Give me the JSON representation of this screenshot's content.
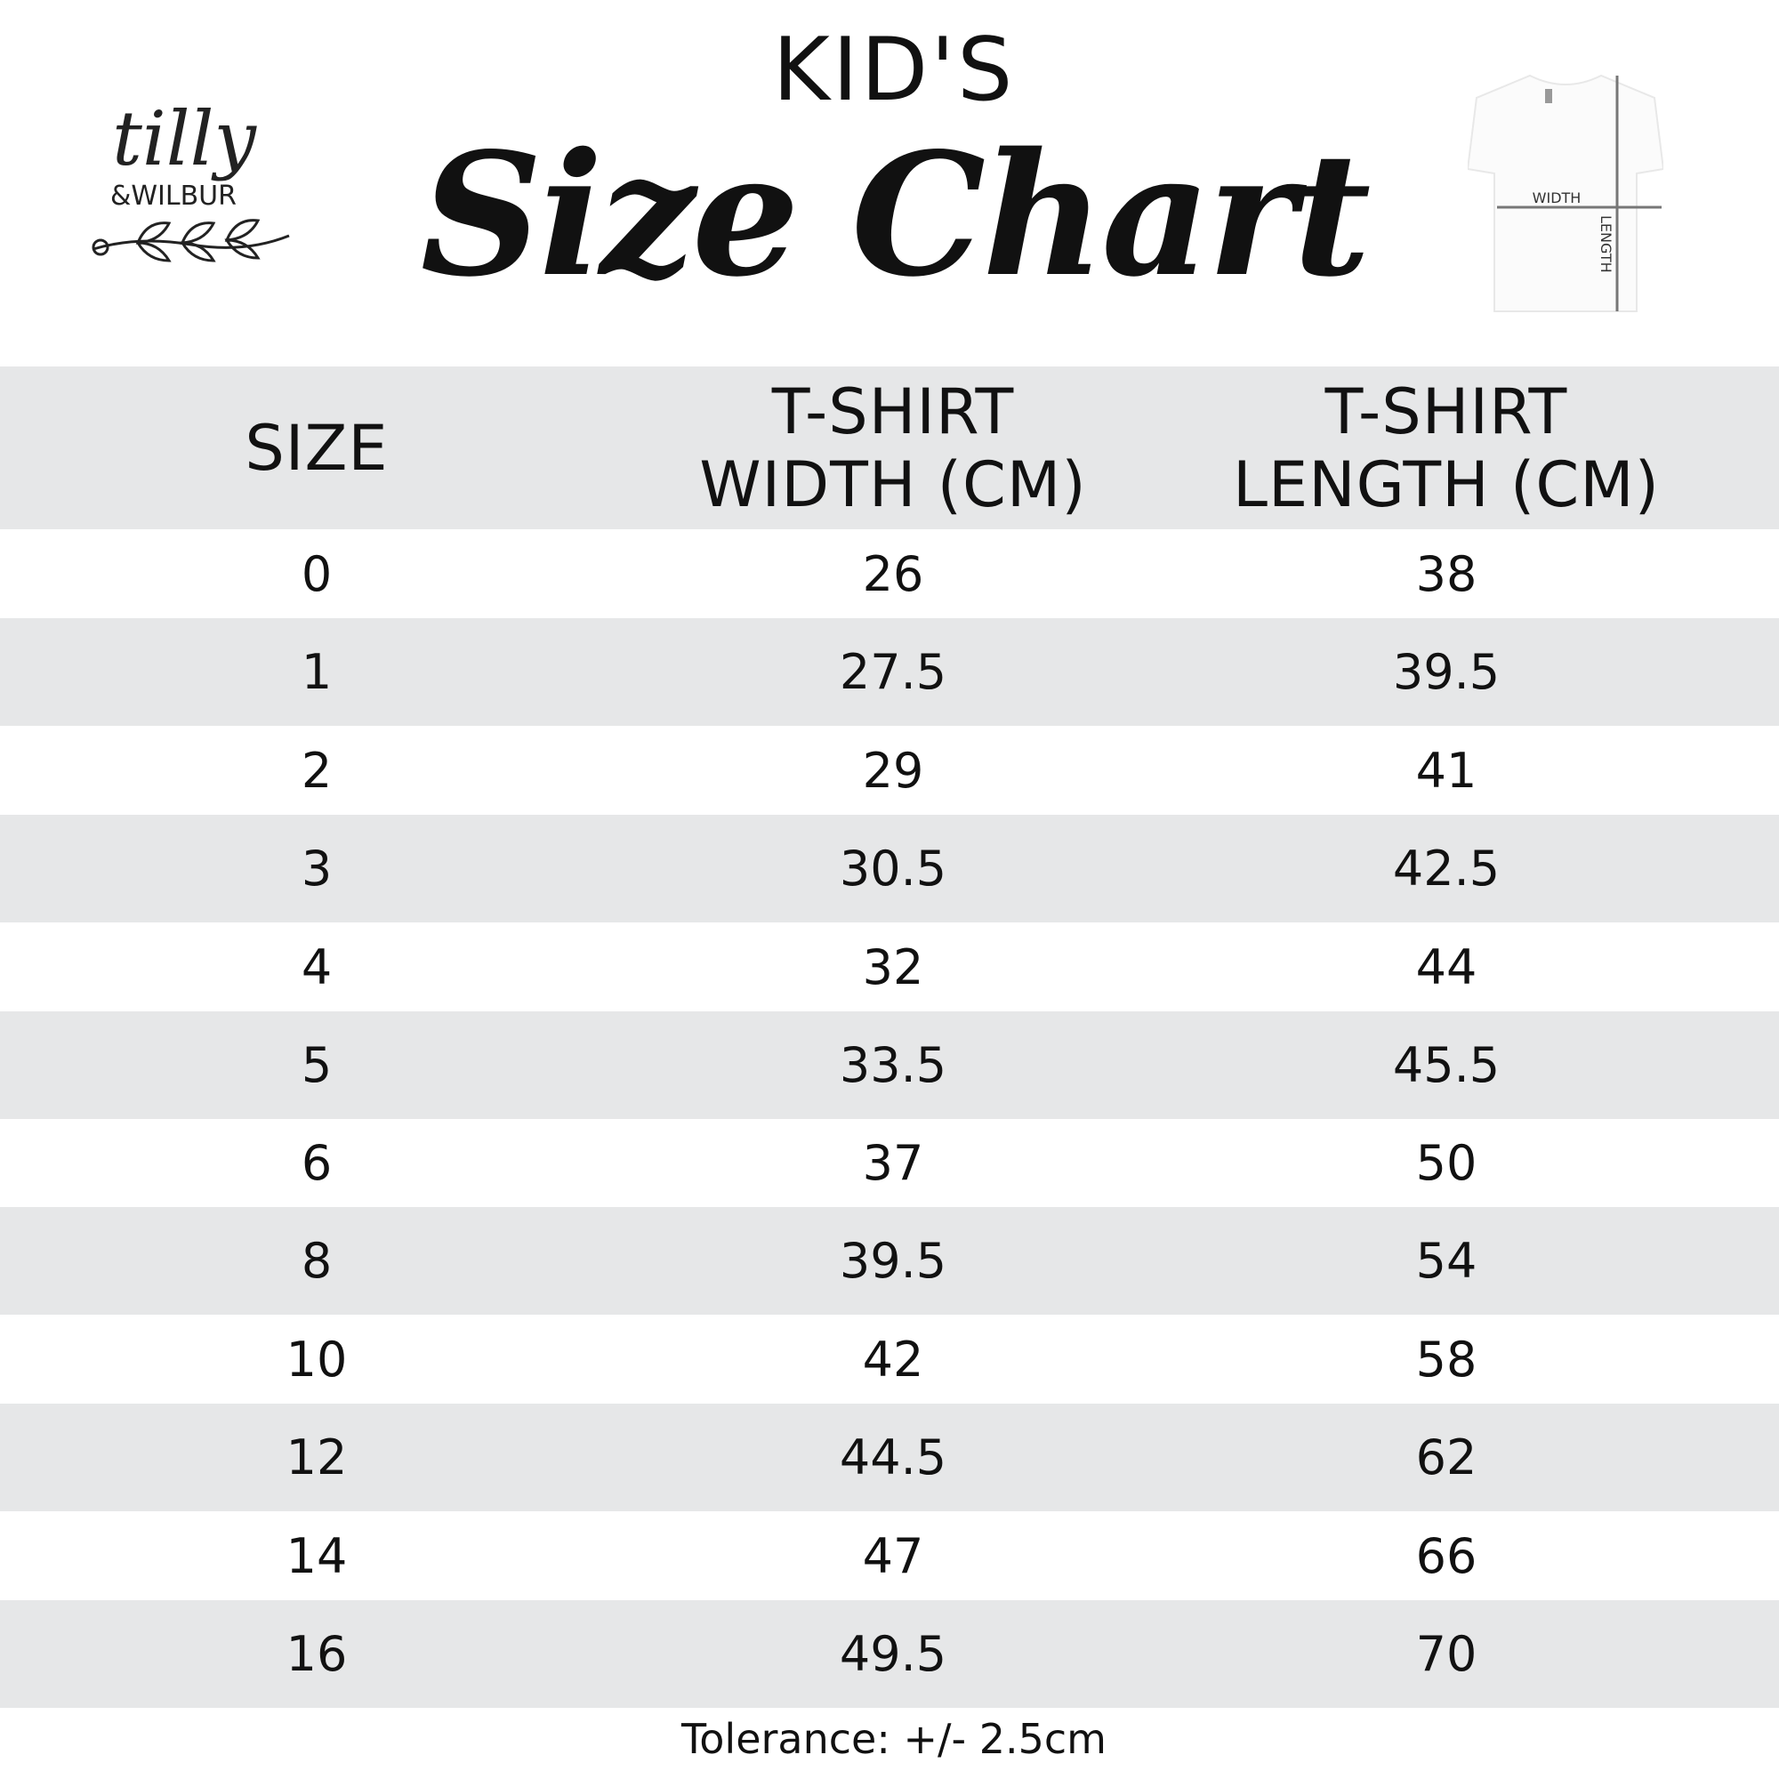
{
  "header": {
    "eyebrow": "KID'S",
    "title": "Size Chart",
    "logo_text": "tilly & WILBUR",
    "diagram": {
      "width_label": "WIDTH",
      "length_label": "LENGTH"
    }
  },
  "table": {
    "columns": [
      "SIZE",
      "T-SHIRT\nWIDTH (CM)",
      "T-SHIRT\nLENGTH (CM)"
    ],
    "columns_lines": [
      [
        "SIZE"
      ],
      [
        "T-SHIRT",
        "WIDTH (CM)"
      ],
      [
        "T-SHIRT",
        "LENGTH (CM)"
      ]
    ],
    "rows": [
      [
        "0",
        "26",
        "38"
      ],
      [
        "1",
        "27.5",
        "39.5"
      ],
      [
        "2",
        "29",
        "41"
      ],
      [
        "3",
        "30.5",
        "42.5"
      ],
      [
        "4",
        "32",
        "44"
      ],
      [
        "5",
        "33.5",
        "45.5"
      ],
      [
        "6",
        "37",
        "50"
      ],
      [
        "8",
        "39.5",
        "54"
      ],
      [
        "10",
        "42",
        "58"
      ],
      [
        "12",
        "44.5",
        "62"
      ],
      [
        "14",
        "47",
        "66"
      ],
      [
        "16",
        "49.5",
        "70"
      ]
    ],
    "colors": {
      "stripe": "#e6e7e8",
      "text": "#111111"
    }
  },
  "footer": {
    "tolerance": "Tolerance: +/- 2.5cm"
  }
}
